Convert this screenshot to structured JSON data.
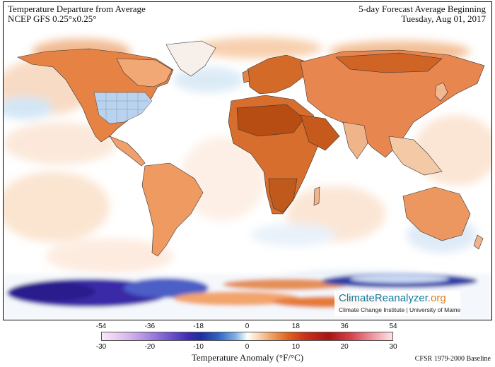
{
  "header": {
    "title_line1": "Temperature Departure from Average",
    "title_line2": "NCEP GFS 0.25°x0.25°",
    "subtitle_line1": "5-day Forecast Average Beginning",
    "subtitle_line2": "Tuesday, Aug 01, 2017"
  },
  "logo": {
    "name": "ClimateReanalyzer",
    "suffix": ".org",
    "subtitle": "Climate Change Institute | University of Maine"
  },
  "legend": {
    "label": "Temperature Anomaly (°F/°C)",
    "fahrenheit_ticks": [
      "-54",
      "-36",
      "-18",
      "0",
      "18",
      "36",
      "54"
    ],
    "celsius_ticks": [
      "-30",
      "-20",
      "-10",
      "0",
      "10",
      "20",
      "30"
    ]
  },
  "footer": {
    "baseline": "CFSR 1979-2000 Baseline"
  },
  "colors": {
    "very_warm": "#b63a08",
    "warm": "#e0782c",
    "mild_warm": "#f7c9a0",
    "neutral": "#ffffff",
    "cool": "#cfe4f4",
    "cold": "#3553b8",
    "very_cold": "#2a1a8c",
    "logo_blue": "#127a9b",
    "logo_orange": "#e07a18"
  }
}
